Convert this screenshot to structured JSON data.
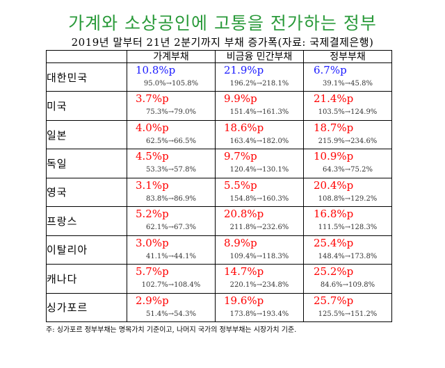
{
  "title": "가계와 소상공인에 고통을 전가하는 정부",
  "subtitle": "2019년 말부터 21년 2분기까지 부채 증가폭(자료: 국제결제은행)",
  "headers": [
    "",
    "가계부채",
    "비금융 민간부채",
    "정부부채"
  ],
  "rows": [
    {
      "country": "대한민국",
      "house": "10.8%p",
      "house_range": "95.0%→105.8%",
      "priv": "21.9%p",
      "priv_range": "196.2%→218.1%",
      "gov": "6.7%p",
      "gov_range": "39.1%→45.8%",
      "color": "#1a1aff"
    },
    {
      "country": "미국",
      "house": "3.7%p",
      "house_range": "75.3%→79.0%",
      "priv": "9.9%p",
      "priv_range": "151.4%→161.3%",
      "gov": "21.4%p",
      "gov_range": "103.5%→124.9%",
      "color": "#ff0000"
    },
    {
      "country": "일본",
      "house": "4.0%p",
      "house_range": "62.5%→66.5%",
      "priv": "18.6%p",
      "priv_range": "163.4%→182.0%",
      "gov": "18.7%p",
      "gov_range": "215.9%→234.6%",
      "color": "#ff0000"
    },
    {
      "country": "독일",
      "house": "4.5%p",
      "house_range": "53.3%→57.8%",
      "priv": "9.7%p",
      "priv_range": "120.4%→130.1%",
      "gov": "10.9%p",
      "gov_range": "64.3%→75.2%",
      "color": "#ff0000"
    },
    {
      "country": "영국",
      "house": "3.1%p",
      "house_range": "83.8%→86.9%",
      "priv": "5.5%p",
      "priv_range": "154.8%→160.3%",
      "gov": "20.4%p",
      "gov_range": "108.8%→129.2%",
      "color": "#ff0000"
    },
    {
      "country": "프랑스",
      "house": "5.2%p",
      "house_range": "62.1%→67.3%",
      "priv": "20.8%p",
      "priv_range": "211.8%→232.6%",
      "gov": "16.8%p",
      "gov_range": "111.5%→128.3%",
      "color": "#ff0000"
    },
    {
      "country": "이탈리아",
      "house": "3.0%p",
      "house_range": "41.1%→44.1%",
      "priv": "8.9%p",
      "priv_range": "109.4%→118.3%",
      "gov": "25.4%p",
      "gov_range": "148.4%→173.8%",
      "color": "#ff0000"
    },
    {
      "country": "캐나다",
      "house": "5.7%p",
      "house_range": "102.7%→108.4%",
      "priv": "14.7%p",
      "priv_range": "220.1%→234.8%",
      "gov": "25.2%p",
      "gov_range": "84.6%→109.8%",
      "color": "#ff0000"
    },
    {
      "country": "싱가포르",
      "house": "2.9%p",
      "house_range": "51.4%→54.3%",
      "priv": "19.6%p",
      "priv_range": "173.8%→193.4%",
      "gov": "25.7%p",
      "gov_range": "125.5%→151.2%",
      "color": "#ff0000"
    }
  ],
  "note": "주: 싱가포르 정부부채는 명목가치 기준이고, 나머지 국가의 정부부채는 시장가치 기준."
}
